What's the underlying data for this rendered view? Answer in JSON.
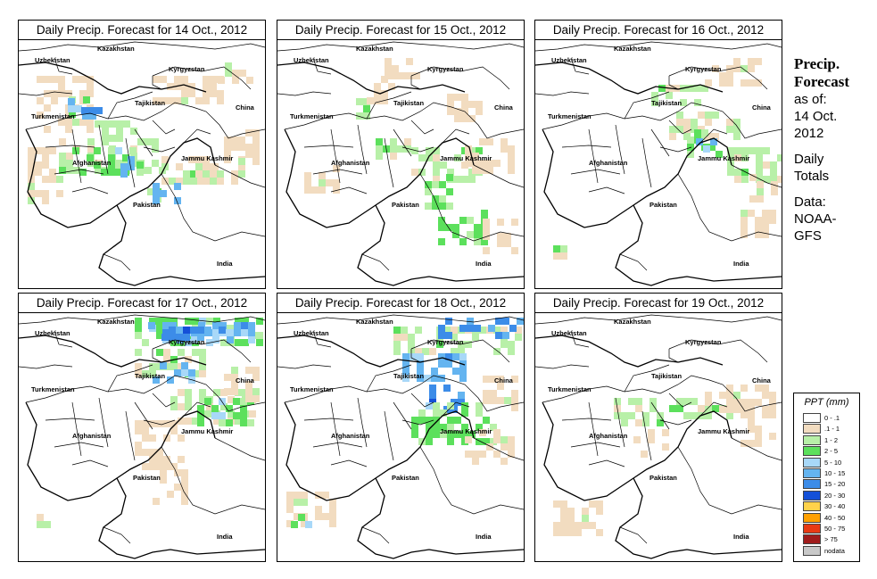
{
  "panels": [
    {
      "title": "Daily Precip. Forecast for  14 Oct., 2012",
      "day": "14"
    },
    {
      "title": "Daily Precip. Forecast for  15 Oct., 2012",
      "day": "15"
    },
    {
      "title": "Daily Precip. Forecast for  16 Oct., 2012",
      "day": "16"
    },
    {
      "title": "Daily Precip. Forecast for  17 Oct., 2012",
      "day": "17"
    },
    {
      "title": "Daily Precip. Forecast for  18 Oct., 2012",
      "day": "18"
    },
    {
      "title": "Daily Precip. Forecast for  19 Oct., 2012",
      "day": "19"
    }
  ],
  "map_labels": {
    "kazakhstan": "Kazakhstan",
    "uzbekistan": "Uzbekistan",
    "kyrgyzstan": "Kyrgyzstan",
    "tajikistan": "Tajikistan",
    "china": "China",
    "turkmenistan": "Turkmenistan",
    "afghanistan": "Afghanistan",
    "jammu_kashmir": "Jammu Kashmir",
    "pakistan": "Pakistan",
    "india": "India"
  },
  "sidebar": {
    "title_line1": "Precip.",
    "title_line2": "Forecast",
    "asof_line1": "as of:",
    "asof_line2": "14 Oct.",
    "asof_line3": "2012",
    "daily_line1": "Daily",
    "daily_line2": "Totals",
    "data_line1": "Data:",
    "data_line2": "NOAA-",
    "data_line3": "GFS"
  },
  "legend": {
    "title": "PPT (mm)",
    "items": [
      {
        "label": "0 - .1",
        "color": "#ffffff"
      },
      {
        "label": ".1 - 1",
        "color": "#f2dcc0"
      },
      {
        "label": "1 - 2",
        "color": "#b8f0a8"
      },
      {
        "label": "2 - 5",
        "color": "#5ce05c"
      },
      {
        "label": "5 - 10",
        "color": "#a8d8f8"
      },
      {
        "label": "10 - 15",
        "color": "#64b4f0"
      },
      {
        "label": "15 - 20",
        "color": "#3c8ce8"
      },
      {
        "label": "20 - 30",
        "color": "#1450d8"
      },
      {
        "label": "30 - 40",
        "color": "#ffd24a"
      },
      {
        "label": "40 - 50",
        "color": "#ffa000"
      },
      {
        "label": "50 - 75",
        "color": "#e83a14"
      },
      {
        "label": "> 75",
        "color": "#a01c1c"
      },
      {
        "label": "nodata",
        "color": "#c8c8c8"
      }
    ]
  }
}
